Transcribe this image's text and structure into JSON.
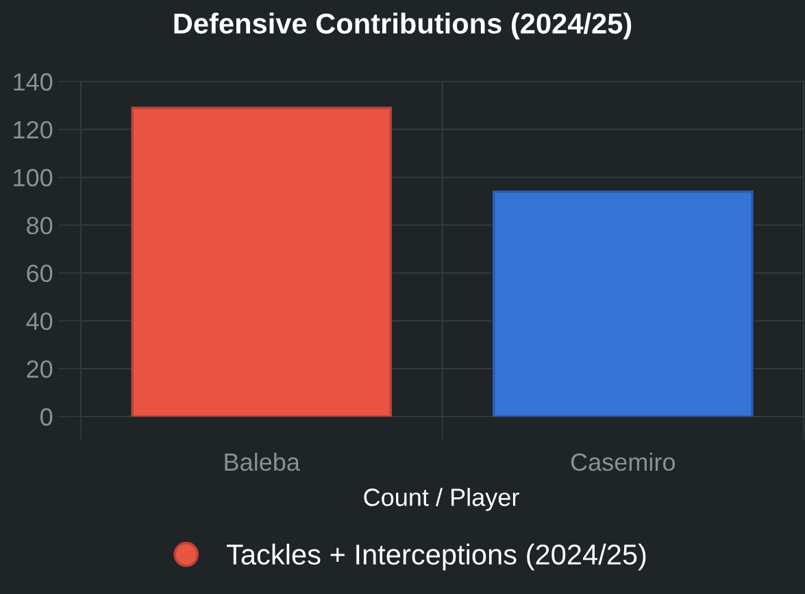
{
  "chart_data": {
    "type": "bar",
    "title": "Defensive Contributions (2024/25)",
    "xlabel": "Count / Player",
    "categories": [
      "Baleba",
      "Casemiro"
    ],
    "series": [
      {
        "name": "Tackles + Interceptions (2024/25)",
        "colors": [
          "#ea5443",
          "#3374d6"
        ],
        "values": [
          129,
          94
        ]
      }
    ],
    "ylim": [
      0,
      140
    ],
    "yticks": [
      0,
      20,
      40,
      60,
      80,
      100,
      120,
      140
    ],
    "grid": true,
    "legend": "bottom",
    "marker": "circle"
  }
}
